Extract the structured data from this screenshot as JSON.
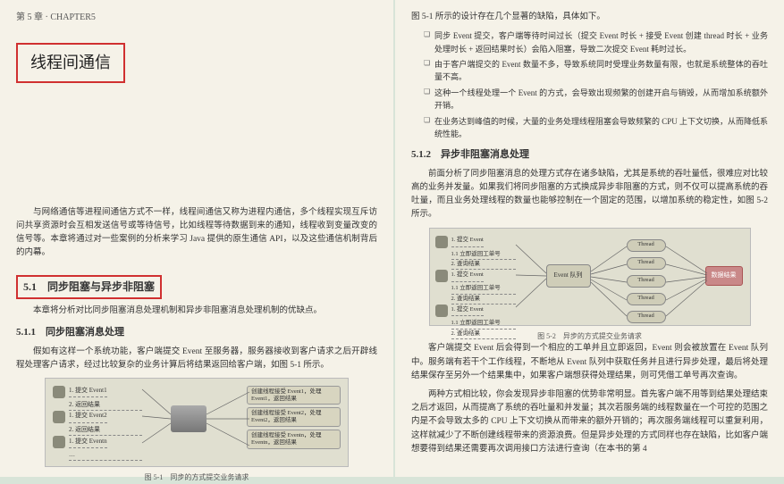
{
  "left": {
    "chapter_head": "第 5 章 · CHAPTER5",
    "title": "线程间通信",
    "intro": "与网络通信等进程间通信方式不一样，线程间通信又称为进程内通信，多个线程实现互斥访问共享资源时会互相发送信号或等待信号，比如线程等待数据到来的通知，线程收到变量改变的信号等。本章将通过对一些案例的分析来学习 Java 提供的原生通信 API，以及这些通信机制背后的内幕。",
    "sec51": "5.1　同步阻塞与异步非阻塞",
    "sec51_intro": "本章将分析对比同步阻塞消息处理机制和异步非阻塞消息处理机制的优缺点。",
    "sec511": "5.1.1　同步阻塞消息处理",
    "sec511_p": "假如有这样一个系统功能，客户端提交 Event 至服务器，服务器接收到客户请求之后开辟线程处理客户请求，经过比较复杂的业务计算后将结果返回给客户端，如图 5-1 所示。",
    "fig1_cap": "图 5-1　同步的方式提交业务请求",
    "d1_rows": [
      {
        "submit": "1. 提交 Event1",
        "ret": "2. 返回结果"
      },
      {
        "submit": "1. 提交 Event2",
        "ret": "2. 返回结果"
      },
      {
        "submit": "1. 提交 Eventn",
        "ret": "…"
      }
    ],
    "d1_tasks": [
      "创建线程接受 Event1，处理 Event1，返回结果",
      "创建线程接受 Event2，处理 Event2，返回结果",
      "创建线程接受 Eventn，处理 Eventn，返回结果"
    ]
  },
  "right": {
    "top_line": "图 5-1 所示的设计存在几个显著的缺陷，具体如下。",
    "bullets": [
      "同步 Event 提交，客户端等待时间过长（提交 Event 时长 + 接受 Event 创建 thread 时长 + 业务处理时长 + 返回结果时长）会陷入阻塞，导致二次提交 Event 耗时过长。",
      "由于客户端提交的 Event 数量不多，导致系统同时受理业务数量有限，也就是系统整体的吞吐量不高。",
      "这种一个线程处理一个 Event 的方式，会导致出现频繁的创建开启与销毁，从而增加系统额外开销。",
      "在业务达到峰值的时候，大量的业务处理线程阻塞会导致频繁的 CPU 上下文切换，从而降低系统性能。"
    ],
    "sec512": "5.1.2　异步非阻塞消息处理",
    "p1": "前面分析了同步阻塞消息的处理方式存在诸多缺陷，尤其是系统的吞吐量低，很难应对比较高的业务并发量。如果我们将同步阻塞的方式换成异步非阻塞的方式，则不仅可以提高系统的吞吐量，而且业务处理线程的数量也能够控制在一个固定的范围，以增加系统的稳定性，如图 5-2 所示。",
    "fig2_cap": "图 5-2　异步的方式提交业务请求",
    "d2_rows": [
      {
        "a": "1. 提交 Event",
        "b": "1.1 立即返回工单号",
        "c": "2. 查询结果"
      },
      {
        "a": "1. 提交 Event",
        "b": "1.1 立即返回工单号",
        "c": "2. 查询结果"
      },
      {
        "a": "1. 提交 Event",
        "b": "1.1 立即返回工单号",
        "c": "2. 查询结果"
      }
    ],
    "d2_queue": "Event 队列",
    "d2_thread": "Thread",
    "d2_result": "数据结果",
    "p2": "客户端提交 Event 后会得到一个相应的工单并且立即返回，Event 则会被放置在 Event 队列中。服务端有若干个工作线程，不断地从 Event 队列中获取任务并且进行异步处理，最后将处理结果保存至另外一个结果集中，如果客户端想获得处理结果，则可凭借工单号再次查询。",
    "p3": "两种方式相比较，你会发现异步非阻塞的优势非常明显。首先客户端不用等到结果处理结束之后才返回，从而提高了系统的吞吐量和并发量；其次若服务端的线程数量在一个可控的范围之内是不会导致太多的 CPU 上下文切换从而带来的额外开销的；再次服务端线程可以重复利用，这样就减少了不断创建线程带来的资源浪费。但是异步处理的方式同样也存在缺陷，比如客户端想要得到结果还需要再次调用接口方法进行查询（在本书的第 4"
  }
}
